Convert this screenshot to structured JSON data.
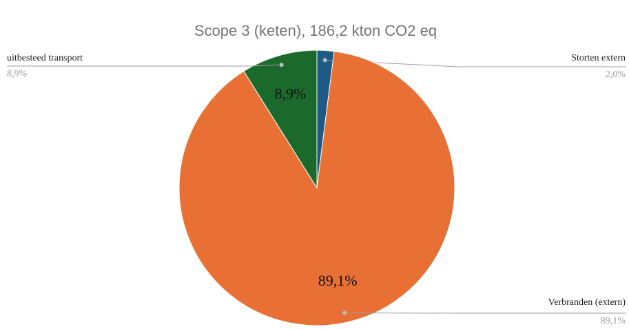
{
  "chart_data": {
    "type": "pie",
    "title": "Scope 3 (keten), 186,2 kton CO2 eq",
    "categories": [
      "Storten extern",
      "Verbranden (extern)",
      "uitbesteed transport"
    ],
    "values": [
      2.0,
      89.1,
      8.9
    ],
    "value_labels": [
      "2,0%",
      "89,1%",
      "8,9%"
    ],
    "colors": [
      "#1d5a86",
      "#e87034",
      "#1b6a2b"
    ]
  }
}
